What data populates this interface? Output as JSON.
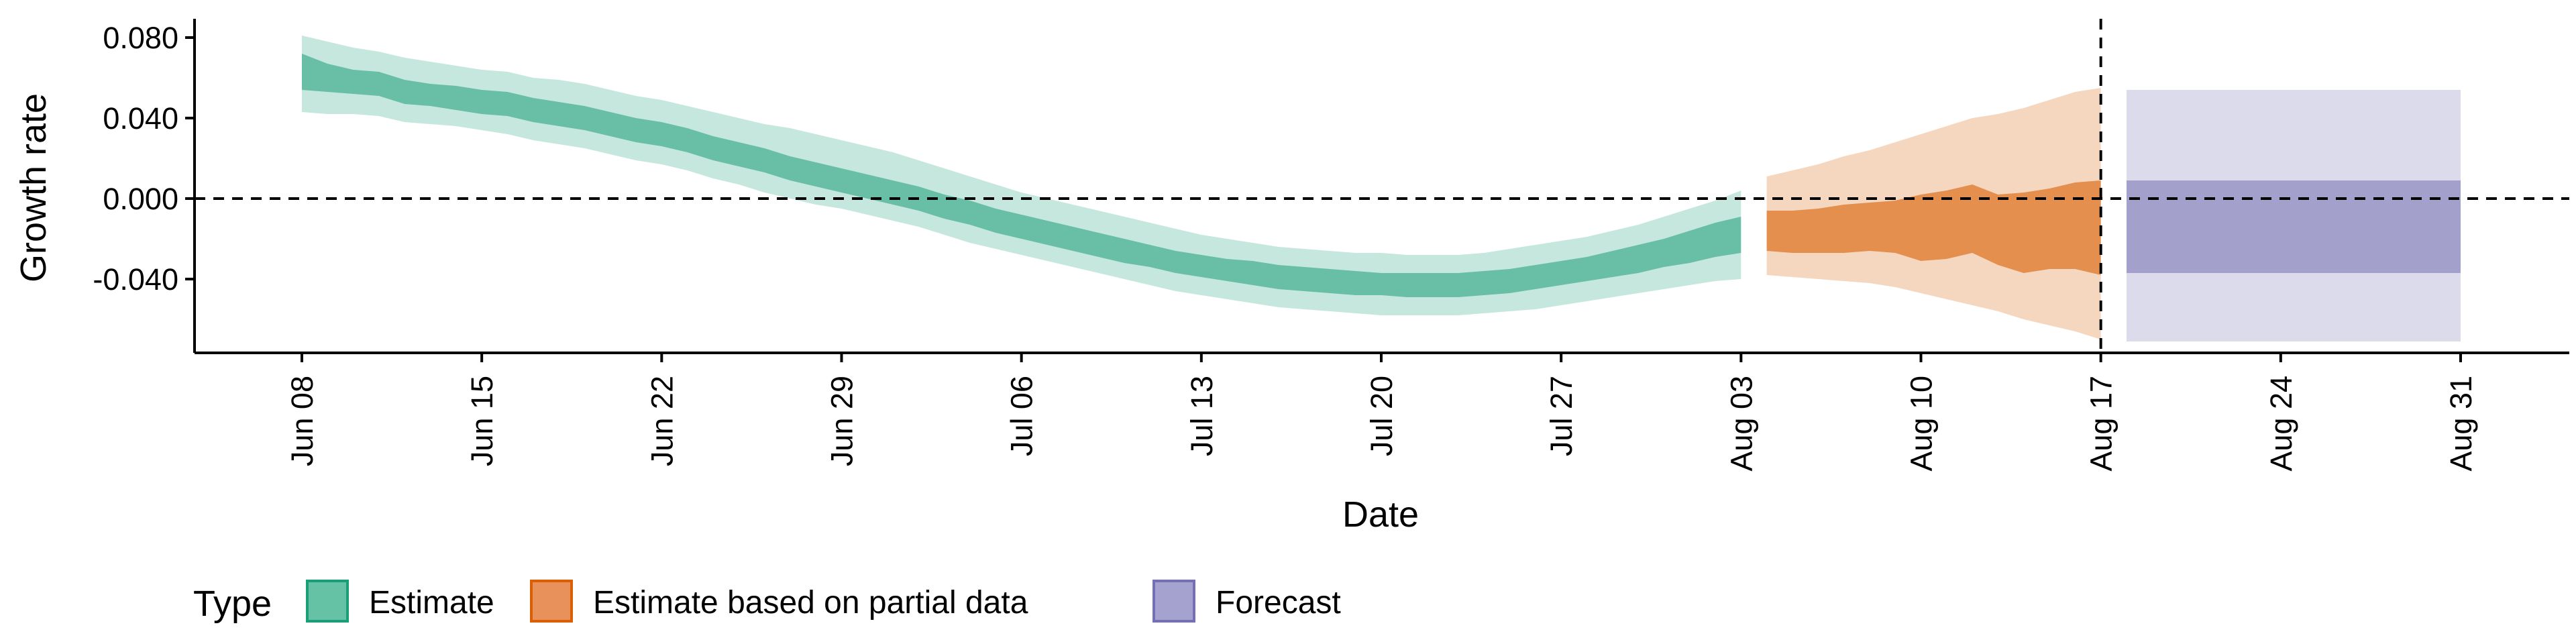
{
  "chart_data": {
    "type": "area",
    "title": "",
    "xlabel": "Date",
    "ylabel": "Growth rate",
    "xlim": [
      -4,
      128
    ],
    "ylim": [
      -0.076,
      0.088
    ],
    "yticks": [
      -0.04,
      0.0,
      0.04,
      0.08
    ],
    "ytick_labels": [
      "-0.040",
      "0.000",
      "0.040",
      "0.080"
    ],
    "xticks": [
      0,
      7,
      14,
      21,
      28,
      35,
      42,
      49,
      56,
      63,
      70,
      77,
      84
    ],
    "xtick_labels": [
      "Jun 08",
      "Jun 15",
      "Jun 22",
      "Jun 29",
      "Jul 06",
      "Jul 13",
      "Jul 20",
      "Jul 27",
      "Aug 03",
      "Aug 10",
      "Aug 17",
      "Aug 24",
      "Aug 31"
    ],
    "x_units": "days since Jun 08",
    "reference_line_y": 0.0,
    "reference_line_x": 70,
    "legend": {
      "title": "Type",
      "placement": "bottom-left",
      "entries": [
        {
          "label": "Estimate",
          "color": "#66c2a5",
          "border": "#1b9e77"
        },
        {
          "label": "Estimate based on partial data",
          "color": "#e8915a",
          "border": "#d95f02"
        },
        {
          "label": "Forecast",
          "color": "#a6a2d0",
          "border": "#7570b3"
        }
      ]
    },
    "series": [
      {
        "name": "Estimate",
        "color": "#1b9e77",
        "outer_opacity": 0.25,
        "inner_opacity": 0.55,
        "points": [
          {
            "x": 0,
            "o_lo": 0.043,
            "o_hi": 0.081,
            "i_lo": 0.054,
            "i_hi": 0.072
          },
          {
            "x": 1,
            "o_lo": 0.042,
            "o_hi": 0.078,
            "i_lo": 0.053,
            "i_hi": 0.067
          },
          {
            "x": 2,
            "o_lo": 0.042,
            "o_hi": 0.075,
            "i_lo": 0.052,
            "i_hi": 0.064
          },
          {
            "x": 3,
            "o_lo": 0.041,
            "o_hi": 0.073,
            "i_lo": 0.051,
            "i_hi": 0.063
          },
          {
            "x": 4,
            "o_lo": 0.038,
            "o_hi": 0.07,
            "i_lo": 0.047,
            "i_hi": 0.059
          },
          {
            "x": 5,
            "o_lo": 0.037,
            "o_hi": 0.068,
            "i_lo": 0.046,
            "i_hi": 0.057
          },
          {
            "x": 6,
            "o_lo": 0.036,
            "o_hi": 0.066,
            "i_lo": 0.044,
            "i_hi": 0.056
          },
          {
            "x": 7,
            "o_lo": 0.034,
            "o_hi": 0.064,
            "i_lo": 0.042,
            "i_hi": 0.054
          },
          {
            "x": 8,
            "o_lo": 0.032,
            "o_hi": 0.063,
            "i_lo": 0.041,
            "i_hi": 0.053
          },
          {
            "x": 9,
            "o_lo": 0.029,
            "o_hi": 0.06,
            "i_lo": 0.038,
            "i_hi": 0.05
          },
          {
            "x": 10,
            "o_lo": 0.027,
            "o_hi": 0.059,
            "i_lo": 0.036,
            "i_hi": 0.048
          },
          {
            "x": 11,
            "o_lo": 0.025,
            "o_hi": 0.057,
            "i_lo": 0.034,
            "i_hi": 0.046
          },
          {
            "x": 12,
            "o_lo": 0.022,
            "o_hi": 0.054,
            "i_lo": 0.031,
            "i_hi": 0.043
          },
          {
            "x": 13,
            "o_lo": 0.019,
            "o_hi": 0.051,
            "i_lo": 0.028,
            "i_hi": 0.04
          },
          {
            "x": 14,
            "o_lo": 0.017,
            "o_hi": 0.049,
            "i_lo": 0.026,
            "i_hi": 0.038
          },
          {
            "x": 15,
            "o_lo": 0.014,
            "o_hi": 0.046,
            "i_lo": 0.023,
            "i_hi": 0.035
          },
          {
            "x": 16,
            "o_lo": 0.01,
            "o_hi": 0.043,
            "i_lo": 0.019,
            "i_hi": 0.031
          },
          {
            "x": 17,
            "o_lo": 0.007,
            "o_hi": 0.04,
            "i_lo": 0.016,
            "i_hi": 0.028
          },
          {
            "x": 18,
            "o_lo": 0.003,
            "o_hi": 0.037,
            "i_lo": 0.013,
            "i_hi": 0.025
          },
          {
            "x": 19,
            "o_lo": 0.0,
            "o_hi": 0.035,
            "i_lo": 0.009,
            "i_hi": 0.021
          },
          {
            "x": 20,
            "o_lo": -0.003,
            "o_hi": 0.032,
            "i_lo": 0.006,
            "i_hi": 0.018
          },
          {
            "x": 21,
            "o_lo": -0.005,
            "o_hi": 0.029,
            "i_lo": 0.003,
            "i_hi": 0.015
          },
          {
            "x": 22,
            "o_lo": -0.008,
            "o_hi": 0.026,
            "i_lo": 0.0,
            "i_hi": 0.012
          },
          {
            "x": 23,
            "o_lo": -0.011,
            "o_hi": 0.023,
            "i_lo": -0.003,
            "i_hi": 0.009
          },
          {
            "x": 24,
            "o_lo": -0.014,
            "o_hi": 0.019,
            "i_lo": -0.006,
            "i_hi": 0.006
          },
          {
            "x": 25,
            "o_lo": -0.018,
            "o_hi": 0.015,
            "i_lo": -0.01,
            "i_hi": 0.002
          },
          {
            "x": 26,
            "o_lo": -0.022,
            "o_hi": 0.011,
            "i_lo": -0.013,
            "i_hi": -0.001
          },
          {
            "x": 27,
            "o_lo": -0.025,
            "o_hi": 0.007,
            "i_lo": -0.017,
            "i_hi": -0.005
          },
          {
            "x": 28,
            "o_lo": -0.028,
            "o_hi": 0.003,
            "i_lo": -0.02,
            "i_hi": -0.008
          },
          {
            "x": 29,
            "o_lo": -0.031,
            "o_hi": 0.0,
            "i_lo": -0.023,
            "i_hi": -0.011
          },
          {
            "x": 30,
            "o_lo": -0.034,
            "o_hi": -0.003,
            "i_lo": -0.026,
            "i_hi": -0.014
          },
          {
            "x": 31,
            "o_lo": -0.037,
            "o_hi": -0.006,
            "i_lo": -0.029,
            "i_hi": -0.017
          },
          {
            "x": 32,
            "o_lo": -0.04,
            "o_hi": -0.009,
            "i_lo": -0.032,
            "i_hi": -0.02
          },
          {
            "x": 33,
            "o_lo": -0.043,
            "o_hi": -0.012,
            "i_lo": -0.034,
            "i_hi": -0.023
          },
          {
            "x": 34,
            "o_lo": -0.046,
            "o_hi": -0.015,
            "i_lo": -0.037,
            "i_hi": -0.026
          },
          {
            "x": 35,
            "o_lo": -0.048,
            "o_hi": -0.018,
            "i_lo": -0.039,
            "i_hi": -0.028
          },
          {
            "x": 36,
            "o_lo": -0.05,
            "o_hi": -0.02,
            "i_lo": -0.041,
            "i_hi": -0.03
          },
          {
            "x": 37,
            "o_lo": -0.052,
            "o_hi": -0.022,
            "i_lo": -0.043,
            "i_hi": -0.031
          },
          {
            "x": 38,
            "o_lo": -0.054,
            "o_hi": -0.024,
            "i_lo": -0.045,
            "i_hi": -0.033
          },
          {
            "x": 39,
            "o_lo": -0.055,
            "o_hi": -0.025,
            "i_lo": -0.046,
            "i_hi": -0.034
          },
          {
            "x": 40,
            "o_lo": -0.056,
            "o_hi": -0.026,
            "i_lo": -0.047,
            "i_hi": -0.035
          },
          {
            "x": 41,
            "o_lo": -0.057,
            "o_hi": -0.027,
            "i_lo": -0.048,
            "i_hi": -0.036
          },
          {
            "x": 42,
            "o_lo": -0.058,
            "o_hi": -0.027,
            "i_lo": -0.048,
            "i_hi": -0.037
          },
          {
            "x": 43,
            "o_lo": -0.058,
            "o_hi": -0.028,
            "i_lo": -0.049,
            "i_hi": -0.037
          },
          {
            "x": 44,
            "o_lo": -0.058,
            "o_hi": -0.028,
            "i_lo": -0.049,
            "i_hi": -0.037
          },
          {
            "x": 45,
            "o_lo": -0.058,
            "o_hi": -0.028,
            "i_lo": -0.049,
            "i_hi": -0.037
          },
          {
            "x": 46,
            "o_lo": -0.057,
            "o_hi": -0.027,
            "i_lo": -0.048,
            "i_hi": -0.036
          },
          {
            "x": 47,
            "o_lo": -0.056,
            "o_hi": -0.025,
            "i_lo": -0.047,
            "i_hi": -0.035
          },
          {
            "x": 48,
            "o_lo": -0.055,
            "o_hi": -0.023,
            "i_lo": -0.045,
            "i_hi": -0.033
          },
          {
            "x": 49,
            "o_lo": -0.053,
            "o_hi": -0.021,
            "i_lo": -0.043,
            "i_hi": -0.031
          },
          {
            "x": 50,
            "o_lo": -0.051,
            "o_hi": -0.019,
            "i_lo": -0.041,
            "i_hi": -0.029
          },
          {
            "x": 51,
            "o_lo": -0.049,
            "o_hi": -0.016,
            "i_lo": -0.039,
            "i_hi": -0.026
          },
          {
            "x": 52,
            "o_lo": -0.047,
            "o_hi": -0.013,
            "i_lo": -0.037,
            "i_hi": -0.023
          },
          {
            "x": 53,
            "o_lo": -0.045,
            "o_hi": -0.009,
            "i_lo": -0.034,
            "i_hi": -0.02
          },
          {
            "x": 54,
            "o_lo": -0.043,
            "o_hi": -0.005,
            "i_lo": -0.032,
            "i_hi": -0.016
          },
          {
            "x": 55,
            "o_lo": -0.041,
            "o_hi": -0.001,
            "i_lo": -0.029,
            "i_hi": -0.012
          },
          {
            "x": 56,
            "o_lo": -0.04,
            "o_hi": 0.004,
            "i_lo": -0.027,
            "i_hi": -0.009
          }
        ]
      },
      {
        "name": "Estimate based on partial data",
        "color": "#d95f02",
        "outer_opacity": 0.25,
        "inner_opacity": 0.6,
        "points": [
          {
            "x": 57,
            "o_lo": -0.038,
            "o_hi": 0.011,
            "i_lo": -0.026,
            "i_hi": -0.006
          },
          {
            "x": 58,
            "o_lo": -0.039,
            "o_hi": 0.014,
            "i_lo": -0.027,
            "i_hi": -0.006
          },
          {
            "x": 59,
            "o_lo": -0.04,
            "o_hi": 0.017,
            "i_lo": -0.027,
            "i_hi": -0.005
          },
          {
            "x": 60,
            "o_lo": -0.041,
            "o_hi": 0.021,
            "i_lo": -0.027,
            "i_hi": -0.003
          },
          {
            "x": 61,
            "o_lo": -0.042,
            "o_hi": 0.024,
            "i_lo": -0.026,
            "i_hi": -0.002
          },
          {
            "x": 62,
            "o_lo": -0.044,
            "o_hi": 0.028,
            "i_lo": -0.027,
            "i_hi": -0.001
          },
          {
            "x": 63,
            "o_lo": -0.047,
            "o_hi": 0.032,
            "i_lo": -0.031,
            "i_hi": 0.002
          },
          {
            "x": 64,
            "o_lo": -0.05,
            "o_hi": 0.036,
            "i_lo": -0.03,
            "i_hi": 0.004
          },
          {
            "x": 65,
            "o_lo": -0.053,
            "o_hi": 0.04,
            "i_lo": -0.027,
            "i_hi": 0.007
          },
          {
            "x": 66,
            "o_lo": -0.056,
            "o_hi": 0.042,
            "i_lo": -0.033,
            "i_hi": 0.002
          },
          {
            "x": 67,
            "o_lo": -0.06,
            "o_hi": 0.045,
            "i_lo": -0.037,
            "i_hi": 0.003
          },
          {
            "x": 68,
            "o_lo": -0.063,
            "o_hi": 0.049,
            "i_lo": -0.035,
            "i_hi": 0.005
          },
          {
            "x": 69,
            "o_lo": -0.066,
            "o_hi": 0.053,
            "i_lo": -0.035,
            "i_hi": 0.008
          },
          {
            "x": 70,
            "o_lo": -0.07,
            "o_hi": 0.055,
            "i_lo": -0.038,
            "i_hi": 0.009
          }
        ]
      },
      {
        "name": "Forecast",
        "color": "#7570b3",
        "outer_opacity": 0.25,
        "inner_opacity": 0.55,
        "points": [
          {
            "x": 71,
            "o_lo": -0.071,
            "o_hi": 0.054,
            "i_lo": -0.037,
            "i_hi": 0.009
          },
          {
            "x": 84,
            "o_lo": -0.071,
            "o_hi": 0.054,
            "i_lo": -0.037,
            "i_hi": 0.009
          }
        ]
      }
    ]
  }
}
